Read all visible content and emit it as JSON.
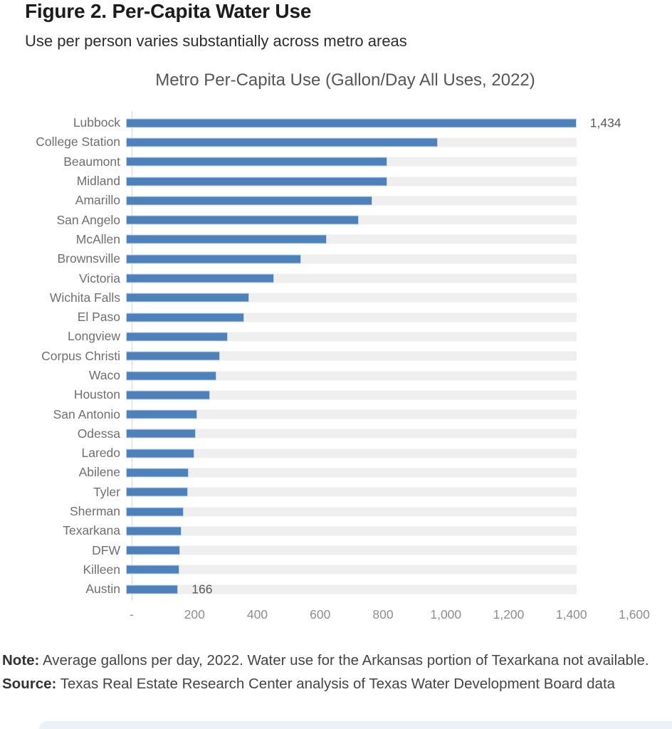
{
  "header": {
    "title": "Figure 2. Per-Capita Water Use",
    "subtitle": "Use per person varies substantially across metro areas"
  },
  "chart_data": {
    "type": "bar",
    "orientation": "horizontal",
    "title": "Metro Per-Capita Use (Gallon/Day All Uses, 2022)",
    "categories": [
      "Lubbock",
      "College Station",
      "Beaumont",
      "Midland",
      "Amarillo",
      "San Angelo",
      "McAllen",
      "Brownsville",
      "Victoria",
      "Wichita Falls",
      "El Paso",
      "Longview",
      "Corpus Christi",
      "Waco",
      "Houston",
      "San Antonio",
      "Odessa",
      "Laredo",
      "Abilene",
      "Tyler",
      "Sherman",
      "Texarkana",
      "DFW",
      "Killeen",
      "Austin"
    ],
    "values": [
      1434,
      992,
      831,
      831,
      784,
      741,
      639,
      557,
      471,
      392,
      376,
      324,
      299,
      288,
      267,
      227,
      222,
      217,
      200,
      198,
      183,
      177,
      172,
      170,
      166
    ],
    "value_labels": [
      "1,434",
      "",
      "",
      "",
      "",
      "",
      "",
      "",
      "",
      "",
      "",
      "",
      "",
      "",
      "",
      "",
      "",
      "",
      "",
      "",
      "",
      "",
      "",
      "",
      "166"
    ],
    "xlim": [
      0,
      1600
    ],
    "x_ticks": [
      {
        "value": 0,
        "label": "-"
      },
      {
        "value": 200,
        "label": "200"
      },
      {
        "value": 400,
        "label": "400"
      },
      {
        "value": 600,
        "label": "600"
      },
      {
        "value": 800,
        "label": "800"
      },
      {
        "value": 1000,
        "label": "1,000"
      },
      {
        "value": 1200,
        "label": "1,200"
      },
      {
        "value": 1400,
        "label": "1,400"
      },
      {
        "value": 1600,
        "label": "1,600"
      }
    ],
    "track_max": 1434,
    "grid": false,
    "legend": "none",
    "colors": {
      "bar_fill": "#4e81b9",
      "bar_border": "#c4d6e8",
      "track": "#efefef",
      "axis_line": "#d7d7d7",
      "tick_text": "#8e8e8e",
      "category_text": "#6f6f6f",
      "value_label_text": "#595959",
      "chart_title_text": "#565656"
    }
  },
  "footer": {
    "note_label": "Note:",
    "note_text": " Average gallons per day, 2022. Water use for the Arkansas portion of Texarkana not available.",
    "source_label": "Source:",
    "source_text": " Texas Real Estate Research Center analysis of Texas Water Development Board data"
  },
  "page": {
    "bottom_strip_color": "#e9f2f9"
  }
}
